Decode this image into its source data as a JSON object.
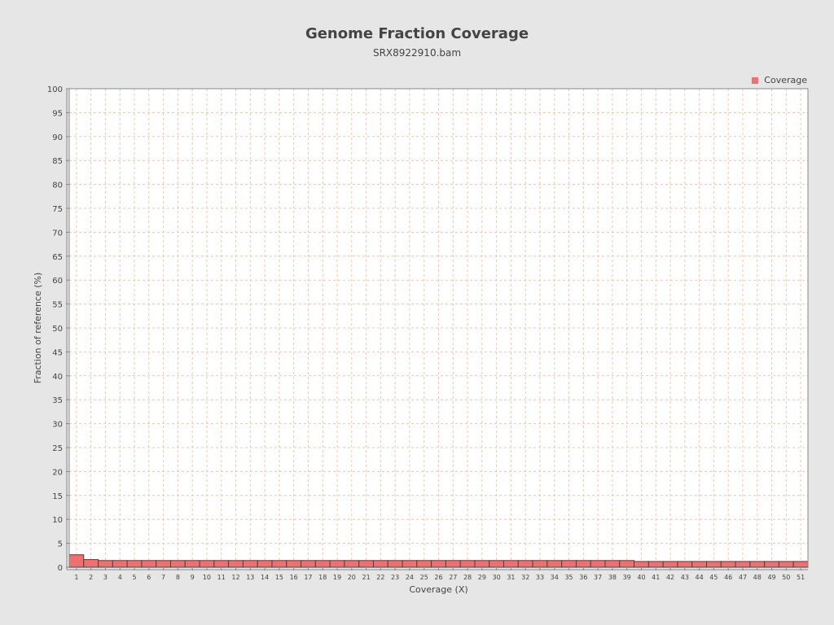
{
  "chart_data": {
    "type": "bar",
    "title": "Genome Fraction Coverage",
    "subtitle": "SRX8922910.bam",
    "xlabel": "Coverage (X)",
    "ylabel": "Fraction of reference (%)",
    "ylim": [
      0,
      100
    ],
    "ytick_step": 5,
    "grid": true,
    "legend": {
      "position": "top-right",
      "entries": [
        "Coverage"
      ]
    },
    "colors": {
      "bar_fill": "#f07070",
      "bar_stroke": "#444444",
      "grid": "#f3c4a8",
      "background": "#e6e6e6",
      "plot_background": "#ffffff",
      "text": "#444444"
    },
    "categories": [
      "1",
      "2",
      "3",
      "4",
      "5",
      "6",
      "7",
      "8",
      "9",
      "10",
      "11",
      "12",
      "13",
      "14",
      "15",
      "16",
      "17",
      "18",
      "19",
      "20",
      "21",
      "22",
      "23",
      "24",
      "25",
      "26",
      "27",
      "28",
      "29",
      "30",
      "31",
      "32",
      "33",
      "34",
      "35",
      "36",
      "37",
      "38",
      "39",
      "40",
      "41",
      "42",
      "43",
      "44",
      "45",
      "46",
      "47",
      "48",
      "49",
      "50",
      "51"
    ],
    "series": [
      {
        "name": "Coverage",
        "values": [
          2.6,
          1.6,
          1.4,
          1.4,
          1.4,
          1.4,
          1.4,
          1.4,
          1.4,
          1.4,
          1.4,
          1.4,
          1.4,
          1.4,
          1.4,
          1.4,
          1.4,
          1.4,
          1.4,
          1.4,
          1.4,
          1.4,
          1.4,
          1.4,
          1.4,
          1.4,
          1.4,
          1.4,
          1.4,
          1.4,
          1.4,
          1.4,
          1.4,
          1.4,
          1.4,
          1.4,
          1.4,
          1.4,
          1.4,
          1.2,
          1.2,
          1.2,
          1.2,
          1.2,
          1.2,
          1.2,
          1.2,
          1.2,
          1.2,
          1.2,
          1.2
        ]
      }
    ]
  }
}
